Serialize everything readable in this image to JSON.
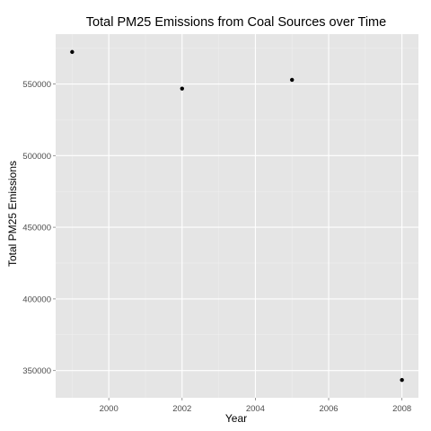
{
  "chart_data": {
    "type": "scatter",
    "title": "Total PM25 Emissions from Coal Sources over Time",
    "xlabel": "Year",
    "ylabel": "Total PM25 Emissions",
    "x": [
      1999,
      2002,
      2005,
      2008
    ],
    "y": [
      572346,
      546789,
      552881,
      343432
    ],
    "xlim": [
      1998.55,
      2008.45
    ],
    "ylim": [
      331000,
      584800
    ],
    "x_ticks": [
      2000,
      2002,
      2004,
      2006,
      2008
    ],
    "x_tick_labels": [
      "2000",
      "2002",
      "2004",
      "2006",
      "2008"
    ],
    "y_ticks": [
      350000,
      400000,
      450000,
      500000,
      550000
    ],
    "y_tick_labels": [
      "350000",
      "400000",
      "450000",
      "500000",
      "550000"
    ],
    "grid": true,
    "legend": "none",
    "colors": {
      "panel": "#e5e5e5",
      "grid": "#ffffff",
      "point": "#000000"
    }
  }
}
